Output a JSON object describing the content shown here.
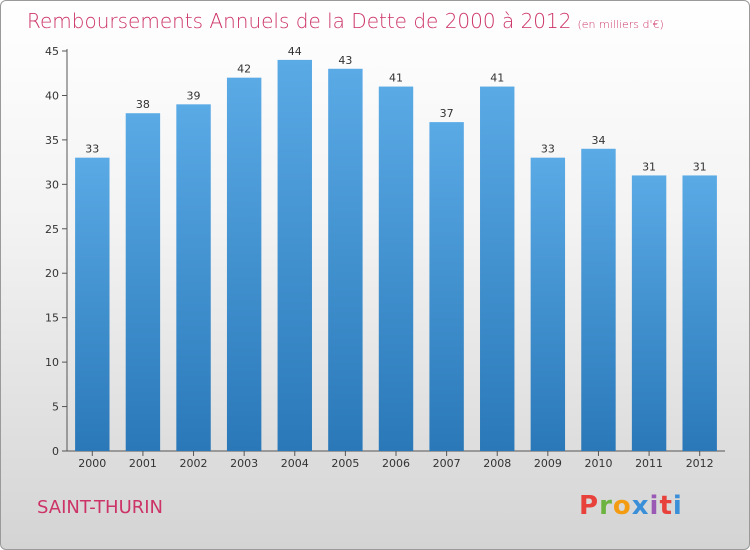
{
  "header": {
    "title": "Remboursements Annuels de la Dette de 2000 à 2012",
    "subtitle": "(en milliers d'€)"
  },
  "footer": {
    "place": "SAINT-THURIN",
    "logo": "Proxiti"
  },
  "colors": {
    "title": "#cc3366",
    "bar_top": "#5aaae6",
    "bar_bottom": "#2a78b8",
    "logo_letters": [
      "#e8413c",
      "#6cb43f",
      "#f39c12",
      "#3a8fd8",
      "#9b59b6",
      "#e8413c",
      "#3a8fd8"
    ]
  },
  "chart_data": {
    "type": "bar",
    "categories": [
      "2000",
      "2001",
      "2002",
      "2003",
      "2004",
      "2005",
      "2006",
      "2007",
      "2008",
      "2009",
      "2010",
      "2011",
      "2012"
    ],
    "values": [
      33,
      38,
      39,
      42,
      44,
      43,
      41,
      37,
      41,
      33,
      34,
      31,
      31
    ],
    "title": "Remboursements Annuels de la Dette de 2000 à 2012",
    "xlabel": "",
    "ylabel": "",
    "ylim": [
      0,
      45
    ],
    "yticks": [
      0,
      5,
      10,
      15,
      20,
      25,
      30,
      35,
      40,
      45
    ],
    "grid": false,
    "data_labels": true
  }
}
